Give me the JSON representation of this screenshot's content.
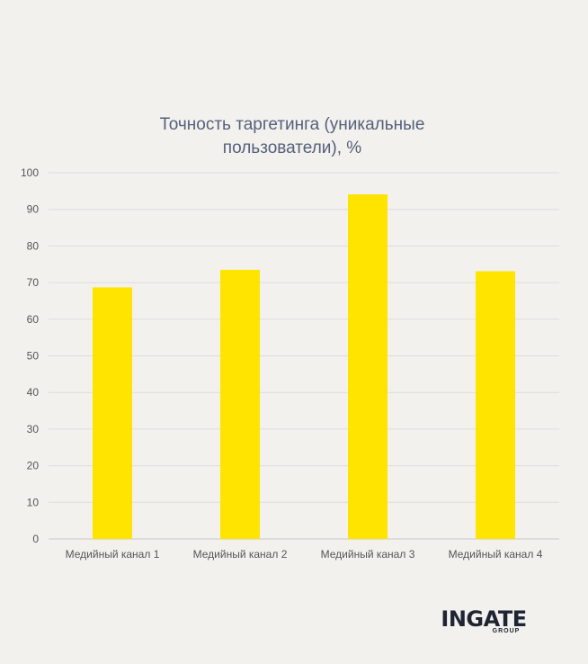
{
  "chart_data": {
    "type": "bar",
    "title_lines": [
      "Точность таргетинга (уникальные",
      "пользователи), %"
    ],
    "categories": [
      "Медийный канал 1",
      "Медийный канал 2",
      "Медийный канал 3",
      "Медийный канал 4"
    ],
    "values": [
      68.7,
      73.5,
      94.1,
      73.1
    ],
    "ylim": [
      0,
      100
    ],
    "yticks": [
      0,
      10,
      20,
      30,
      40,
      50,
      60,
      70,
      80,
      90,
      100
    ],
    "grid": true,
    "bar_color": "#ffe400",
    "grid_color": "#dcdcdc"
  },
  "logo": {
    "name": "INGATE",
    "sub": "GROUP"
  }
}
